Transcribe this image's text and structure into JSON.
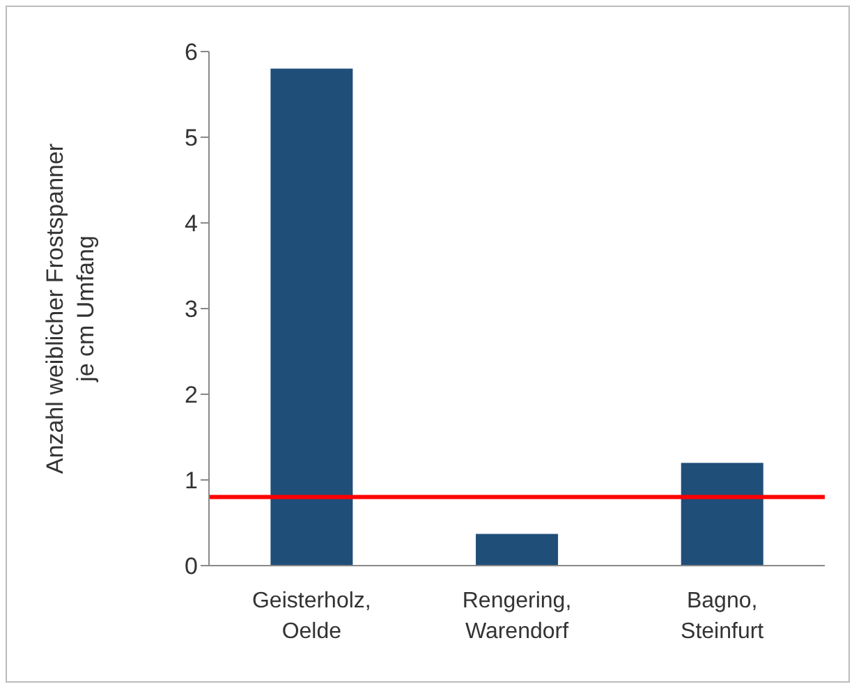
{
  "chart_data": {
    "type": "bar",
    "ylabel": "Anzahl weiblicher Frostspanner je cm Umfang",
    "categories": [
      "Geisterholz, Oelde",
      "Rengering, Warendorf",
      "Bagno, Steinfurt"
    ],
    "values": [
      5.8,
      0.37,
      1.2
    ],
    "color": "#1f4e79",
    "ylim": [
      0,
      6
    ],
    "yticks": [
      0,
      1,
      2,
      3,
      4,
      5,
      6
    ],
    "grid": false,
    "ref_lines": [
      {
        "axis": "y",
        "value": 0.8,
        "color": "#ff0000",
        "line_style": "solid"
      }
    ]
  }
}
